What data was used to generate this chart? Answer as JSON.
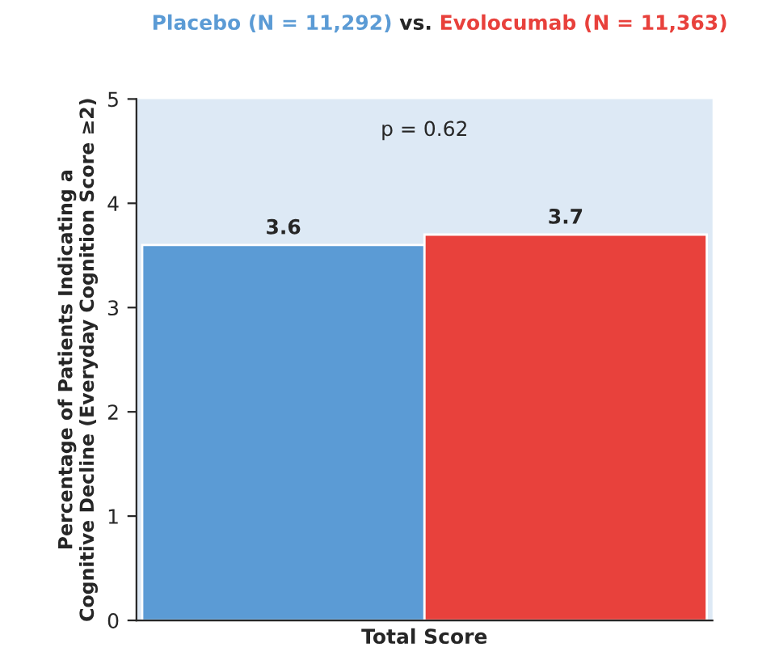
{
  "chart_data": {
    "type": "bar",
    "categories": [
      "Total Score"
    ],
    "series": [
      {
        "name": "Placebo (N = 11,292)",
        "color": "#5b9bd5",
        "values": [
          3.6
        ]
      },
      {
        "name": "Evolocumab (N = 11,363)",
        "color": "#e8413c",
        "values": [
          3.7
        ]
      }
    ],
    "ylabel": "Percentage of Patients Indicating a\nCognitive Decline (Everyday Cognition Score ≥2)",
    "annotations": [
      "vs.",
      "p = 0.62"
    ],
    "ylim": [
      0,
      5
    ],
    "yticks": [
      0,
      1,
      2,
      3,
      4,
      5
    ],
    "data_labels": true,
    "legend": "top",
    "grid": false
  }
}
